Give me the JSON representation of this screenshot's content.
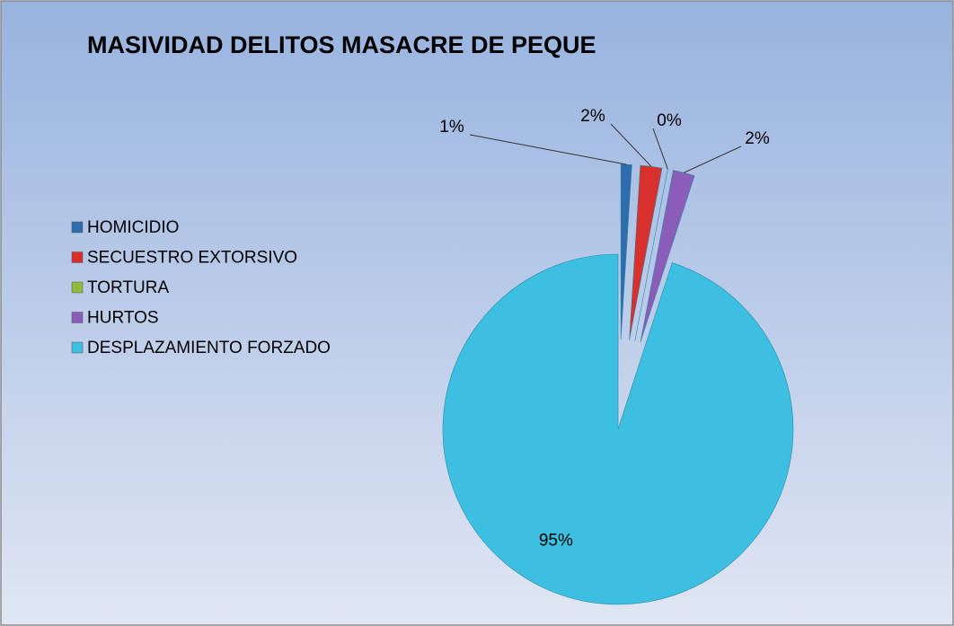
{
  "chart_data": {
    "type": "pie",
    "title": "MASIVIDAD DELITOS MASACRE DE PEQUE",
    "categories": [
      "HOMICIDIO",
      "SECUESTRO EXTORSIVO",
      "TORTURA",
      "HURTOS",
      "DESPLAZAMIENTO FORZADO"
    ],
    "values": [
      1,
      2,
      0,
      2,
      95
    ],
    "value_labels": [
      "1%",
      "2%",
      "0%",
      "2%",
      "95%"
    ],
    "colors": [
      "#2f6cab",
      "#d8302c",
      "#8fba3c",
      "#8b5db9",
      "#3cbfe0"
    ],
    "legend": "left"
  }
}
